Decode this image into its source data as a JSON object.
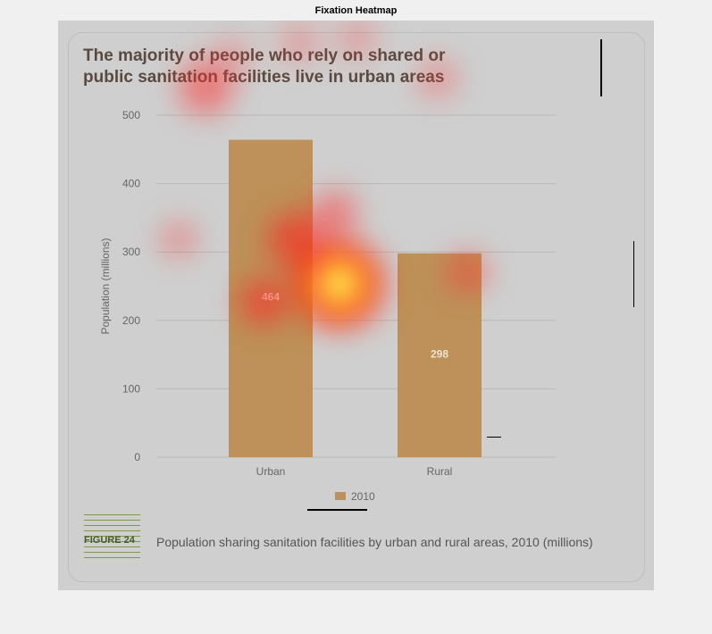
{
  "figure": {
    "title": "Fixation Heatmap"
  },
  "stimulus": {
    "headline": [
      "The majority of people who rely on shared or",
      "public sanitation facilities live in urban areas"
    ],
    "figure_label": "FIGURE 24",
    "caption": "Population sharing sanitation facilities by urban and rural areas, 2010 (millions)",
    "legend": "2010"
  },
  "colors": {
    "bar": "#bd9159",
    "background": "#cfcfcf",
    "gridline": "#b8b8b8",
    "heat_hot": "#ffff66",
    "heat_cool": "#ff3030"
  },
  "chart_data": {
    "type": "bar",
    "categories": [
      "Urban",
      "Rural"
    ],
    "series": [
      {
        "name": "2010",
        "values": [
          464,
          298
        ]
      }
    ],
    "ylabel": "Population (millions)",
    "ylim": [
      0,
      500
    ],
    "yticks": [
      0,
      100,
      200,
      300,
      400,
      500
    ],
    "data_labels": [
      "464",
      "298"
    ],
    "grid": true,
    "legend_position": "bottom"
  }
}
